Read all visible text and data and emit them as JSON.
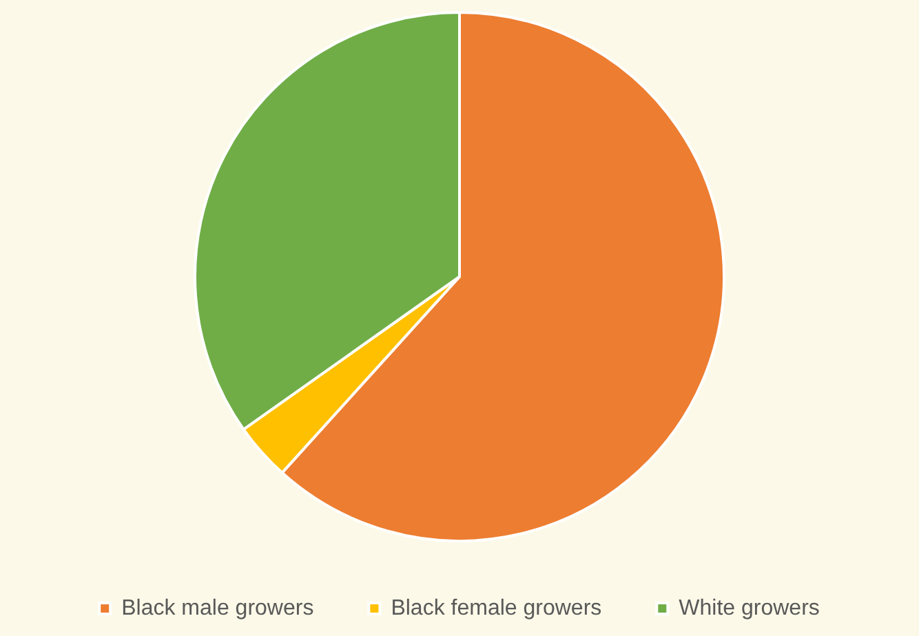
{
  "chart_data": {
    "type": "pie",
    "categories": [
      "Black male growers",
      "Black female growers",
      "White growers"
    ],
    "values": [
      61.7,
      3.5,
      34.8
    ],
    "colors": [
      "#ed7d31",
      "#ffc000",
      "#70ad47"
    ],
    "legend": "bottom"
  }
}
